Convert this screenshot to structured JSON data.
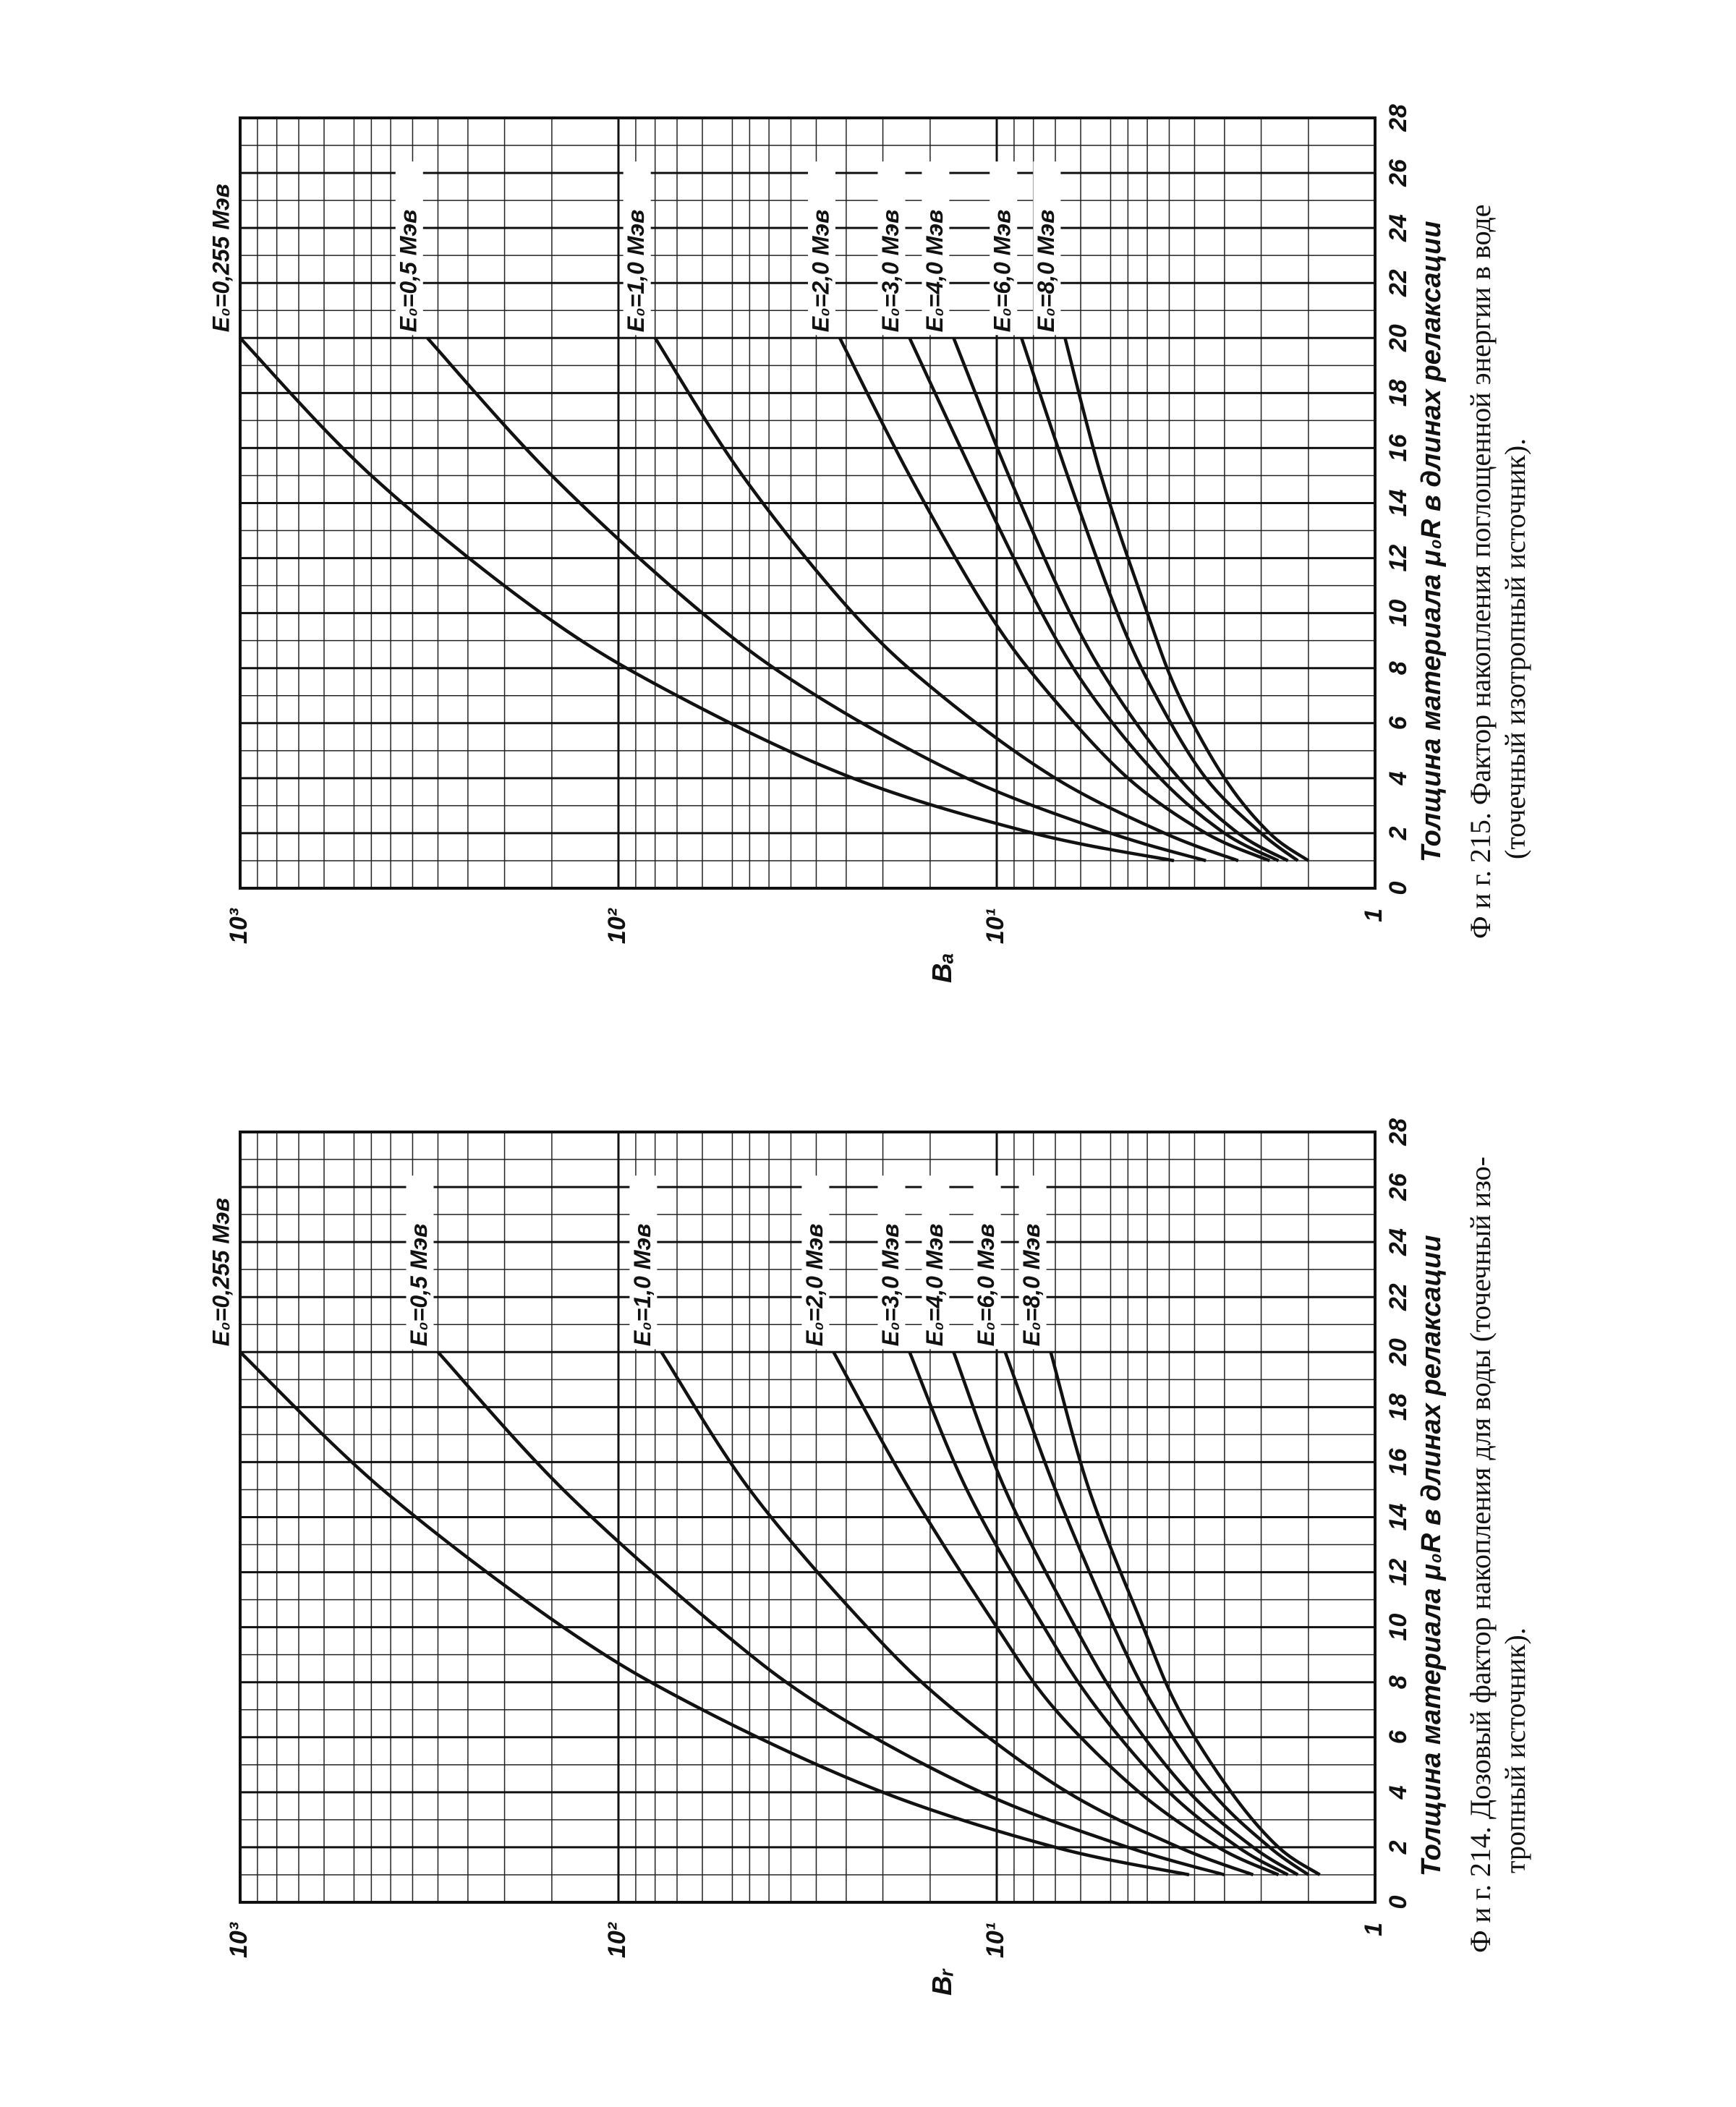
{
  "chart_data": [
    {
      "type": "line",
      "log_y": true,
      "grid": true,
      "minor_grid": true,
      "color": "#111111",
      "xlabel": "Толщина материала μ₀R в длинах релаксации",
      "ylabel": "Bₐ",
      "caption": [
        "Ф и г. 215. Фактор накопления поглощенной энергии в воде",
        "(точечный изотропный источник)."
      ],
      "x": [
        1,
        2,
        4,
        7,
        10,
        15,
        20
      ],
      "xlim": [
        0,
        28
      ],
      "xticks": [
        0,
        2,
        4,
        6,
        8,
        10,
        12,
        14,
        16,
        18,
        20,
        22,
        24,
        26,
        28
      ],
      "ylim": [
        1,
        1000
      ],
      "yticks": [
        1,
        {
          "value": 10,
          "label": "10¹"
        },
        {
          "value": 100,
          "label": "10²"
        },
        {
          "value": 1000,
          "label": "10³"
        }
      ],
      "series": [
        {
          "name": "E₀=0,255 Мэв",
          "values": [
            3.4,
            8,
            24,
            70,
            160,
            450,
            1000
          ]
        },
        {
          "name": "E₀=0,5 Мэв",
          "values": [
            2.8,
            5,
            12,
            30,
            60,
            150,
            320
          ]
        },
        {
          "name": "E₀=1,0 Мэв",
          "values": [
            2.3,
            3.6,
            7,
            14,
            24,
            47,
            80
          ]
        },
        {
          "name": "E₀=2,0 Мэв",
          "values": [
            1.9,
            2.8,
            4.5,
            7.2,
            10.5,
            17,
            26
          ]
        },
        {
          "name": "E₀=3,0 Мэв",
          "values": [
            1.8,
            2.5,
            3.7,
            5.6,
            7.6,
            11.5,
            17
          ]
        },
        {
          "name": "E₀=4,0 Мэв",
          "values": [
            1.7,
            2.3,
            3.3,
            4.8,
            6.4,
            9.3,
            13
          ]
        },
        {
          "name": "E₀=6,0 Мэв",
          "values": [
            1.6,
            2.0,
            2.8,
            3.8,
            4.8,
            6.5,
            8.6
          ]
        },
        {
          "name": "E₀=8,0 Мэв",
          "values": [
            1.5,
            1.9,
            2.5,
            3.3,
            4.0,
            5.3,
            6.6
          ]
        }
      ]
    },
    {
      "type": "line",
      "log_y": true,
      "grid": true,
      "minor_grid": true,
      "color": "#111111",
      "xlabel": "Толщина материала μ₀R в длинах релаксации",
      "ylabel": "Bᵣ",
      "caption": [
        "Ф и г. 214. Дозовый фактор накопления для воды (точечный изо-",
        "тропный источник)."
      ],
      "x": [
        1,
        2,
        4,
        7,
        10,
        15,
        20
      ],
      "xlim": [
        0,
        28
      ],
      "xticks": [
        0,
        2,
        4,
        6,
        8,
        10,
        12,
        14,
        16,
        18,
        20,
        22,
        24,
        26,
        28
      ],
      "ylim": [
        1,
        1000
      ],
      "yticks": [
        1,
        {
          "value": 10,
          "label": "10¹"
        },
        {
          "value": 100,
          "label": "10²"
        },
        {
          "value": 1000,
          "label": "10³"
        }
      ],
      "series": [
        {
          "name": "E₀=0,255 Мэв",
          "values": [
            3.1,
            7,
            20,
            60,
            140,
            420,
            1000
          ]
        },
        {
          "name": "E₀=0,5 Мэв",
          "values": [
            2.5,
            4.5,
            11,
            28,
            55,
            140,
            300
          ]
        },
        {
          "name": "E₀=1,0 Мэв",
          "values": [
            2.1,
            3.3,
            6.5,
            13,
            22,
            45,
            77
          ]
        },
        {
          "name": "E₀=2,0 Мэв",
          "values": [
            1.8,
            2.6,
            4.2,
            7,
            10,
            17,
            27
          ]
        },
        {
          "name": "E₀=3,0 Мэв",
          "values": [
            1.7,
            2.3,
            3.5,
            5.4,
            7.5,
            12,
            17
          ]
        },
        {
          "name": "E₀=4,0 Мэв",
          "values": [
            1.6,
            2.1,
            3.1,
            4.6,
            6.2,
            9.5,
            13
          ]
        },
        {
          "name": "E₀=6,0 Мэв",
          "values": [
            1.5,
            1.9,
            2.7,
            3.8,
            4.9,
            7,
            9.5
          ]
        },
        {
          "name": "E₀=8,0 Мэв",
          "values": [
            1.4,
            1.8,
            2.4,
            3.3,
            4.1,
            5.7,
            7.2
          ]
        }
      ]
    }
  ]
}
